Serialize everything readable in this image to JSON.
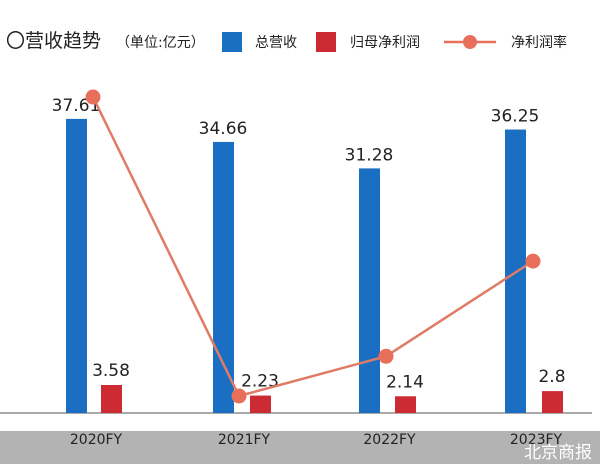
{
  "chart_data": {
    "type": "bar+line",
    "title": "〇营收趋势",
    "unit": "（单位:亿元）",
    "categories": [
      "2020FY",
      "2021FY",
      "2022FY",
      "2023FY"
    ],
    "series": [
      {
        "name": "总营收",
        "type": "bar",
        "color": "#1a6fc2",
        "values": [
          37.61,
          34.66,
          31.28,
          36.25
        ]
      },
      {
        "name": "归母净利润",
        "type": "bar",
        "color": "#cc2b34",
        "values": [
          3.58,
          2.23,
          2.14,
          2.8
        ]
      },
      {
        "name": "净利润率",
        "type": "line",
        "color": "#e8705a",
        "values": [
          9.52,
          6.43,
          6.84,
          7.72
        ],
        "unit": "%"
      }
    ],
    "legend": "top",
    "grid": false
  },
  "watermark": "北京商报"
}
